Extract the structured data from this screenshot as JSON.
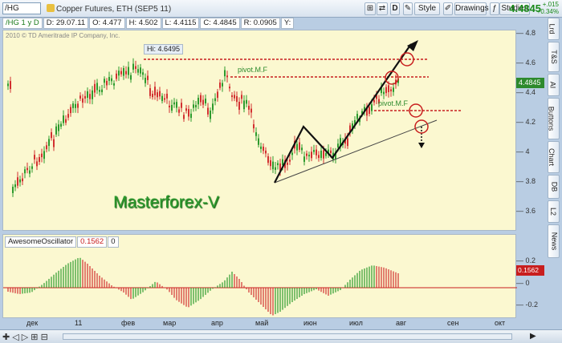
{
  "header": {
    "symbol": "/HG",
    "description": "Copper Futures, ETH (SEP5 11)",
    "letter_btn": "D",
    "style": "Style",
    "drawings": "Drawings",
    "studies": "Studies",
    "price": "4.4845",
    "change1": "+.015",
    "change2": "+0.34%"
  },
  "infobar": {
    "symbol": "/HG 1 y D",
    "date": "D: 29.07.11",
    "open": "O: 4.477",
    "high": "H: 4.502",
    "low": "L: 4.4115",
    "close": "C: 4.4845",
    "range": "R: 0.0905",
    "y": "Y:"
  },
  "chart": {
    "copyright": "2010 © TD Ameritrade IP Company, Inc.",
    "hi_label": "Hi: 4.6495",
    "pivot1": "pivot.M.F",
    "pivot2": "pivot.M.F",
    "watermark": "Masterforex-V",
    "price_tag": "4.4845",
    "y_ticks": [
      "4.8",
      "4.6",
      "4.4",
      "4.2",
      "4",
      "3.8",
      "3.6"
    ]
  },
  "oscillator": {
    "name": "AwesomeOscillator",
    "value": "0.1562",
    "extra": "0",
    "tag": "0.1562",
    "y_ticks": [
      "0.2",
      "0",
      "-0.2"
    ]
  },
  "xaxis": [
    "дек",
    "11",
    "фев",
    "мар",
    "апр",
    "май",
    "июн",
    "июл",
    "авг",
    "сен",
    "окт"
  ],
  "sidetabs": [
    "Lrd",
    "T&S",
    "AI",
    "Buttons",
    "Chart",
    "DB",
    "L2",
    "News"
  ],
  "colors": {
    "up_candle": "#2d9a2d",
    "down_candle": "#d23030",
    "resistance": "#c81e1e",
    "background": "#fbf8d0"
  }
}
